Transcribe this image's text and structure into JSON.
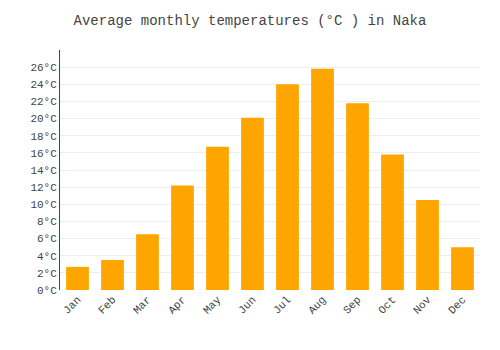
{
  "chart_data": {
    "type": "bar",
    "title": "Average monthly temperatures (°C ) in Naka",
    "categories": [
      "Jan",
      "Feb",
      "Mar",
      "Apr",
      "May",
      "Jun",
      "Jul",
      "Aug",
      "Sep",
      "Oct",
      "Nov",
      "Dec"
    ],
    "values": [
      2.7,
      3.5,
      6.5,
      12.2,
      16.7,
      20.1,
      24.0,
      25.8,
      21.8,
      15.8,
      10.5,
      5.0
    ],
    "color": "#FFA500",
    "ylim": [
      0,
      28
    ],
    "yticks": [
      {
        "value": 0,
        "label": "0°C"
      },
      {
        "value": 2,
        "label": "2°C"
      },
      {
        "value": 4,
        "label": "4°C"
      },
      {
        "value": 6,
        "label": "6°C"
      },
      {
        "value": 8,
        "label": "8°C"
      },
      {
        "value": 10,
        "label": "10°C"
      },
      {
        "value": 12,
        "label": "12°C"
      },
      {
        "value": 14,
        "label": "14°C"
      },
      {
        "value": 16,
        "label": "16°C"
      },
      {
        "value": 18,
        "label": "18°C"
      },
      {
        "value": 20,
        "label": "20°C"
      },
      {
        "value": 22,
        "label": "22°C"
      },
      {
        "value": 24,
        "label": "24°C"
      },
      {
        "value": 26,
        "label": "26°C"
      }
    ],
    "grid": true
  }
}
